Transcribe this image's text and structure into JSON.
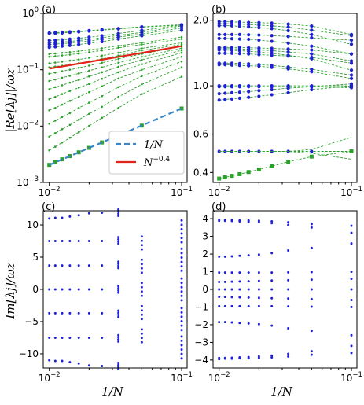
{
  "figure": {
    "xlabel": "1/N",
    "ylabel_top": "|Re[λj]|/ωz",
    "ylabel_bottom": "Im[λj]/ωz"
  },
  "chart_data": [
    {
      "panel": "(a)",
      "type": "line",
      "xscale": "log",
      "yscale": "log",
      "xlim": [
        0.009,
        0.11
      ],
      "ylim": [
        0.001,
        1.0
      ],
      "xticks": [
        0.01,
        0.1
      ],
      "xtick_labels": [
        [
          "10",
          "−2"
        ],
        [
          "10",
          "−1"
        ]
      ],
      "yticks": [
        0.001,
        0.01,
        0.1,
        1.0
      ],
      "ytick_labels": [
        [
          "10",
          "−3"
        ],
        [
          "10",
          "−2"
        ],
        [
          "10",
          "−1"
        ],
        [
          "10",
          "0"
        ]
      ],
      "x": [
        0.01,
        0.0111,
        0.0125,
        0.0143,
        0.0167,
        0.02,
        0.025,
        0.0333,
        0.05,
        0.1
      ],
      "green_dashed_series": [
        [
          0.25,
          0.255,
          0.262,
          0.27,
          0.28,
          0.295,
          0.315,
          0.35,
          0.4,
          0.5
        ],
        [
          0.28,
          0.285,
          0.29,
          0.298,
          0.31,
          0.325,
          0.345,
          0.38,
          0.43,
          0.55
        ],
        [
          0.3,
          0.305,
          0.31,
          0.318,
          0.33,
          0.345,
          0.37,
          0.405,
          0.46,
          0.6
        ],
        [
          0.33,
          0.335,
          0.34,
          0.35,
          0.362,
          0.378,
          0.4,
          0.44,
          0.5,
          0.62
        ],
        [
          0.44,
          0.445,
          0.45,
          0.46,
          0.47,
          0.485,
          0.505,
          0.53,
          0.57,
          0.62
        ],
        [
          0.45,
          0.456,
          0.462,
          0.47,
          0.48,
          0.495,
          0.515,
          0.54,
          0.58,
          0.63
        ],
        [
          0.19,
          0.194,
          0.199,
          0.205,
          0.213,
          0.225,
          0.24,
          0.265,
          0.3,
          0.38
        ],
        [
          0.17,
          0.174,
          0.179,
          0.185,
          0.193,
          0.204,
          0.22,
          0.245,
          0.28,
          0.35
        ],
        [
          0.13,
          0.134,
          0.139,
          0.145,
          0.152,
          0.163,
          0.178,
          0.2,
          0.24,
          0.3
        ],
        [
          0.11,
          0.114,
          0.118,
          0.124,
          0.131,
          0.141,
          0.156,
          0.178,
          0.22,
          0.28
        ],
        [
          0.085,
          0.089,
          0.094,
          0.1,
          0.108,
          0.118,
          0.133,
          0.155,
          0.19,
          0.26
        ],
        [
          0.063,
          0.067,
          0.072,
          0.078,
          0.086,
          0.096,
          0.11,
          0.133,
          0.17,
          0.24
        ],
        [
          0.045,
          0.049,
          0.053,
          0.059,
          0.066,
          0.076,
          0.09,
          0.113,
          0.15,
          0.22
        ],
        [
          0.03,
          0.033,
          0.037,
          0.042,
          0.048,
          0.056,
          0.069,
          0.09,
          0.125,
          0.2
        ],
        [
          0.019,
          0.021,
          0.024,
          0.028,
          0.033,
          0.04,
          0.051,
          0.07,
          0.1,
          0.17
        ],
        [
          0.011,
          0.0125,
          0.0145,
          0.017,
          0.021,
          0.026,
          0.034,
          0.049,
          0.077,
          0.14
        ],
        [
          0.0065,
          0.0075,
          0.0088,
          0.0105,
          0.013,
          0.0165,
          0.022,
          0.033,
          0.055,
          0.11
        ],
        [
          0.0037,
          0.0043,
          0.0051,
          0.0062,
          0.0078,
          0.0101,
          0.014,
          0.021,
          0.037,
          0.075
        ]
      ],
      "blue_points_x": [
        0.01,
        0.0111,
        0.0125,
        0.0143,
        0.0167,
        0.02,
        0.025,
        0.0333,
        0.05,
        0.1
      ],
      "blue_series_index": [
        0,
        1,
        2,
        3,
        4,
        5,
        6,
        7,
        8,
        9
      ],
      "green_squares": {
        "x": [
          0.01,
          0.0111,
          0.0125,
          0.0143,
          0.0167,
          0.02,
          0.025,
          0.0333,
          0.05,
          0.1
        ],
        "y": [
          0.00205,
          0.00228,
          0.00257,
          0.00293,
          0.00342,
          0.0041,
          0.00513,
          0.0068,
          0.0102,
          0.0205
        ]
      },
      "fit_1_over_N": {
        "label": "1/N",
        "x": [
          0.01,
          0.1
        ],
        "y": [
          0.00205,
          0.0205
        ]
      },
      "fit_power": {
        "label": "N^-0.4",
        "base": "N",
        "exponent": "−0.4",
        "x": [
          0.01,
          0.1
        ],
        "y": [
          0.1045,
          0.262
        ]
      },
      "legend": [
        {
          "label": "1/N",
          "color": "#3b86c6",
          "style": "dashed"
        },
        {
          "label_base": "N",
          "label_exp": "−0.4",
          "color": "#e2231a",
          "style": "solid"
        }
      ],
      "legend_position": "lower-right",
      "colors": {
        "green": "#2ca02c",
        "blue": "#1f1fd6",
        "fit_dash": "#3b86c6",
        "fit_red": "#e2231a"
      }
    },
    {
      "panel": "(b)",
      "type": "line",
      "xscale": "log",
      "yscale": "log",
      "xlim": [
        0.009,
        0.11
      ],
      "ylim": [
        0.36,
        2.15
      ],
      "xticks": [
        0.01,
        0.1
      ],
      "xtick_labels": [
        [
          "10",
          "−2"
        ],
        [
          "10",
          "−1"
        ]
      ],
      "yticks": [
        0.4,
        0.6,
        1.0,
        2.0
      ],
      "ytick_labels": [
        "0.4",
        "0.6",
        "1.0",
        "2.0"
      ],
      "x": [
        0.01,
        0.0111,
        0.0125,
        0.0143,
        0.0167,
        0.02,
        0.025,
        0.0333,
        0.05,
        0.1
      ],
      "blue_series": [
        [
          1.97,
          1.97,
          1.965,
          1.96,
          1.955,
          1.95,
          1.94,
          1.92,
          1.88,
          1.72
        ],
        [
          1.93,
          1.93,
          1.925,
          1.92,
          1.91,
          1.9,
          1.885,
          1.86,
          1.8,
          1.7
        ],
        [
          1.89,
          1.89,
          1.885,
          1.875,
          1.865,
          1.85,
          1.83,
          1.79,
          1.72,
          1.55
        ],
        [
          1.72,
          1.72,
          1.72,
          1.72,
          1.715,
          1.71,
          1.7,
          1.685,
          1.66,
          1.62
        ],
        [
          1.65,
          1.65,
          1.645,
          1.64,
          1.635,
          1.62,
          1.6,
          1.57,
          1.52,
          1.4
        ],
        [
          1.5,
          1.5,
          1.5,
          1.5,
          1.495,
          1.49,
          1.485,
          1.475,
          1.46,
          1.4
        ],
        [
          1.48,
          1.48,
          1.48,
          1.475,
          1.47,
          1.46,
          1.45,
          1.43,
          1.4,
          1.3
        ],
        [
          1.46,
          1.46,
          1.455,
          1.45,
          1.44,
          1.43,
          1.41,
          1.38,
          1.33,
          1.18
        ],
        [
          1.41,
          1.41,
          1.41,
          1.405,
          1.4,
          1.39,
          1.38,
          1.37,
          1.35,
          1.27
        ],
        [
          1.27,
          1.27,
          1.27,
          1.265,
          1.26,
          1.25,
          1.24,
          1.22,
          1.19,
          1.12
        ],
        [
          1.25,
          1.25,
          1.245,
          1.24,
          1.235,
          1.23,
          1.215,
          1.195,
          1.16,
          1.08
        ],
        [
          1.0,
          1.0,
          1.0,
          1.0,
          1.0,
          1.0,
          1.0,
          1.0,
          1.0,
          1.0
        ],
        [
          0.99,
          0.99,
          0.99,
          0.99,
          0.99,
          0.99,
          0.99,
          0.99,
          0.99,
          0.98
        ],
        [
          0.92,
          0.925,
          0.93,
          0.935,
          0.94,
          0.95,
          0.96,
          0.975,
          0.99,
          1.02
        ],
        [
          0.86,
          0.865,
          0.87,
          0.877,
          0.885,
          0.895,
          0.91,
          0.93,
          0.96,
          1.0
        ],
        [
          0.5,
          0.5,
          0.5,
          0.5,
          0.5,
          0.5,
          0.5,
          0.5,
          0.5,
          0.5
        ]
      ],
      "green_dashed_extra": [
        [
          0.5,
          0.5,
          0.5,
          0.5,
          0.5,
          0.5,
          0.5,
          0.5,
          0.51,
          0.58
        ],
        [
          0.5,
          0.5,
          0.5,
          0.5,
          0.5,
          0.5,
          0.5,
          0.5,
          0.49,
          0.46
        ]
      ],
      "green_squares": {
        "x": [
          0.01,
          0.0111,
          0.0125,
          0.0143,
          0.0167,
          0.02,
          0.025,
          0.0333,
          0.05,
          0.1
        ],
        "y": [
          0.375,
          0.38,
          0.386,
          0.393,
          0.402,
          0.413,
          0.428,
          0.448,
          0.473,
          0.5
        ]
      },
      "colors": {
        "green": "#2ca02c",
        "blue": "#1f1fd6"
      }
    },
    {
      "panel": "(c)",
      "type": "scatter",
      "xscale": "log",
      "yscale": "linear",
      "xlim": [
        0.009,
        0.11
      ],
      "ylim": [
        -12.2,
        12.2
      ],
      "xticks": [
        0.01,
        0.1
      ],
      "xtick_labels": [
        [
          "10",
          "−2"
        ],
        [
          "10",
          "−1"
        ]
      ],
      "yticks": [
        -10,
        -5,
        0,
        5,
        10
      ],
      "ytick_labels": [
        "−10",
        "−5",
        "0",
        "5",
        "10"
      ],
      "x": [
        0.01,
        0.0111,
        0.0125,
        0.0143,
        0.0167,
        0.02,
        0.025,
        0.0333,
        0.05,
        0.1
      ],
      "clusters": [
        [
          11.0,
          11.1,
          11.1,
          11.3,
          11.5,
          11.8,
          11.9,
          11.9,
          0,
          0
        ],
        [
          7.5,
          7.5,
          7.5,
          7.5,
          7.5,
          7.5,
          7.5,
          7.6,
          7.2,
          9.0
        ],
        [
          3.7,
          3.7,
          3.7,
          3.7,
          3.7,
          3.7,
          3.7,
          3.8,
          3.6,
          4.6
        ],
        [
          0,
          0,
          0,
          0,
          0,
          0,
          0,
          0,
          0,
          0
        ],
        [
          -3.7,
          -3.7,
          -3.7,
          -3.7,
          -3.7,
          -3.7,
          -3.7,
          -3.8,
          -3.6,
          -4.6
        ],
        [
          -7.5,
          -7.5,
          -7.5,
          -7.5,
          -7.5,
          -7.5,
          -7.5,
          -7.6,
          -7.2,
          -9.0
        ],
        [
          -11.0,
          -11.1,
          -11.1,
          -11.3,
          -11.5,
          -11.8,
          -11.9,
          -11.9,
          0,
          0
        ]
      ],
      "spreads": [
        0,
        0,
        0,
        0,
        0,
        0.05,
        0.25,
        0.5,
        1.0,
        1.7
      ],
      "colors": {
        "blue": "#1f1fd6"
      }
    },
    {
      "panel": "(d)",
      "type": "scatter",
      "xscale": "log",
      "yscale": "linear",
      "xlim": [
        0.009,
        0.11
      ],
      "ylim": [
        -4.45,
        4.45
      ],
      "xticks": [
        0.01,
        0.1
      ],
      "xtick_labels": [
        [
          "10",
          "−2"
        ],
        [
          "10",
          "−1"
        ]
      ],
      "yticks": [
        -4,
        -3,
        -2,
        -1,
        0,
        1,
        2,
        3,
        4
      ],
      "ytick_labels": [
        "−4",
        "−3",
        "−2",
        "−1",
        "0",
        "1",
        "2",
        "3",
        "4"
      ],
      "x": [
        0.01,
        0.0111,
        0.0125,
        0.0143,
        0.0167,
        0.02,
        0.025,
        0.0333,
        0.05,
        0.1
      ],
      "rows": [
        [
          3.95,
          3.92,
          3.92,
          3.9,
          3.9,
          3.88,
          3.85,
          3.8,
          3.7,
          3.6
        ],
        [
          3.88,
          3.88,
          3.87,
          3.85,
          3.83,
          3.8,
          3.75,
          3.65,
          3.5,
          3.2
        ],
        [
          1.85,
          1.85,
          1.87,
          1.9,
          1.93,
          1.97,
          2.05,
          2.2,
          2.35,
          2.6
        ],
        [
          0.95,
          0.95,
          0.95,
          0.95,
          0.95,
          0.95,
          0.95,
          0.96,
          0.98,
          1.0
        ],
        [
          0.42,
          0.43,
          0.44,
          0.45,
          0.46,
          0.48,
          0.5,
          0.52,
          0.55,
          0.6
        ],
        [
          0,
          0,
          0,
          0,
          0,
          0,
          0,
          0,
          0,
          0
        ],
        [
          -0.42,
          -0.43,
          -0.44,
          -0.45,
          -0.46,
          -0.48,
          -0.5,
          -0.52,
          -0.55,
          -0.6
        ],
        [
          -0.95,
          -0.95,
          -0.95,
          -0.95,
          -0.95,
          -0.95,
          -0.95,
          -0.96,
          -0.98,
          -1.0
        ],
        [
          -1.85,
          -1.85,
          -1.87,
          -1.9,
          -1.93,
          -1.97,
          -2.05,
          -2.2,
          -2.35,
          -2.6
        ],
        [
          -3.88,
          -3.88,
          -3.87,
          -3.85,
          -3.83,
          -3.8,
          -3.75,
          -3.65,
          -3.5,
          -3.2
        ],
        [
          -3.95,
          -3.92,
          -3.92,
          -3.9,
          -3.9,
          -3.88,
          -3.85,
          -3.8,
          -3.7,
          -3.6
        ]
      ],
      "colors": {
        "blue": "#1f1fd6"
      }
    }
  ]
}
